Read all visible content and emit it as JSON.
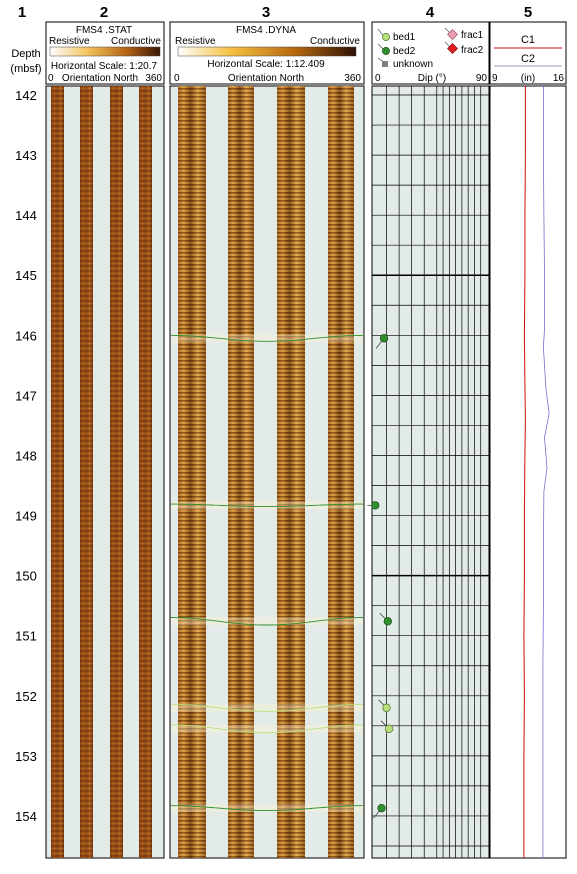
{
  "tracks": [
    {
      "number": "1",
      "header": {
        "line1": "Depth",
        "line2": "(mbsf)"
      }
    },
    {
      "number": "2",
      "title": "FMS4 .STAT",
      "left_label": "Resistive",
      "right_label": "Conductive",
      "scale_label": "Horizontal Scale: 1:20.7",
      "axis_min": "0",
      "axis_label": "Orientation North",
      "axis_max": "360"
    },
    {
      "number": "3",
      "title": "FMS4 .DYNA",
      "left_label": "Resistive",
      "right_label": "Conductive",
      "scale_label": "Horizontal Scale:  1:12.409",
      "axis_min": "0",
      "axis_label": "Orientation North",
      "axis_max": "360"
    },
    {
      "number": "4",
      "legend": [
        "bed1",
        "bed2",
        "unknown",
        "frac1",
        "frac2"
      ],
      "axis_min": "0",
      "axis_label": "Dip (°)",
      "axis_max": "90"
    },
    {
      "number": "5",
      "curve1": "C1",
      "curve2": "C2",
      "axis_min": "9",
      "axis_label": "(in)",
      "axis_max": "16"
    }
  ],
  "depth": {
    "min": 141.85,
    "max": 154.7,
    "labels": [
      "142",
      "143",
      "144",
      "145",
      "146",
      "147",
      "148",
      "149",
      "150",
      "151",
      "152",
      "153",
      "154"
    ]
  },
  "colors": {
    "bed1": "#b8e07a",
    "bed2": "#2f8f2f",
    "unknown": "#808080",
    "frac1": "#e8a0b0",
    "frac2": "#e02020",
    "c1": "#d01010",
    "c2": "#7070d0",
    "image_background": "#e2ebe8"
  },
  "dips": [
    {
      "type": "bed2",
      "depth": 146.05,
      "dip": 8
    },
    {
      "type": "bed2",
      "depth": 148.83,
      "dip": 1
    },
    {
      "type": "bed2",
      "depth": 150.76,
      "dip": 11
    },
    {
      "type": "bed1",
      "depth": 152.2,
      "dip": 10
    },
    {
      "type": "bed1",
      "depth": 152.55,
      "dip": 12
    },
    {
      "type": "bed2",
      "depth": 153.87,
      "dip": 6
    }
  ],
  "caliper": {
    "c1": [
      [
        141.85,
        12.25
      ],
      [
        143.0,
        12.25
      ],
      [
        144.0,
        12.2
      ],
      [
        145.0,
        12.2
      ],
      [
        146.0,
        12.15
      ],
      [
        146.8,
        12.2
      ],
      [
        147.4,
        12.25
      ],
      [
        148.0,
        12.2
      ],
      [
        149.0,
        12.15
      ],
      [
        150.0,
        12.15
      ],
      [
        151.0,
        12.1
      ],
      [
        152.0,
        12.15
      ],
      [
        153.0,
        12.1
      ],
      [
        154.0,
        12.1
      ],
      [
        154.7,
        12.1
      ]
    ],
    "c2": [
      [
        141.85,
        14.0
      ],
      [
        143.0,
        14.0
      ],
      [
        144.0,
        14.05
      ],
      [
        145.0,
        14.1
      ],
      [
        145.9,
        14.1
      ],
      [
        146.2,
        14.0
      ],
      [
        146.9,
        14.25
      ],
      [
        147.3,
        14.55
      ],
      [
        147.7,
        14.1
      ],
      [
        148.2,
        14.35
      ],
      [
        148.6,
        14.05
      ],
      [
        149.5,
        14.0
      ],
      [
        150.5,
        14.0
      ],
      [
        151.5,
        13.95
      ],
      [
        152.5,
        13.95
      ],
      [
        153.5,
        13.95
      ],
      [
        154.7,
        13.95
      ]
    ]
  }
}
